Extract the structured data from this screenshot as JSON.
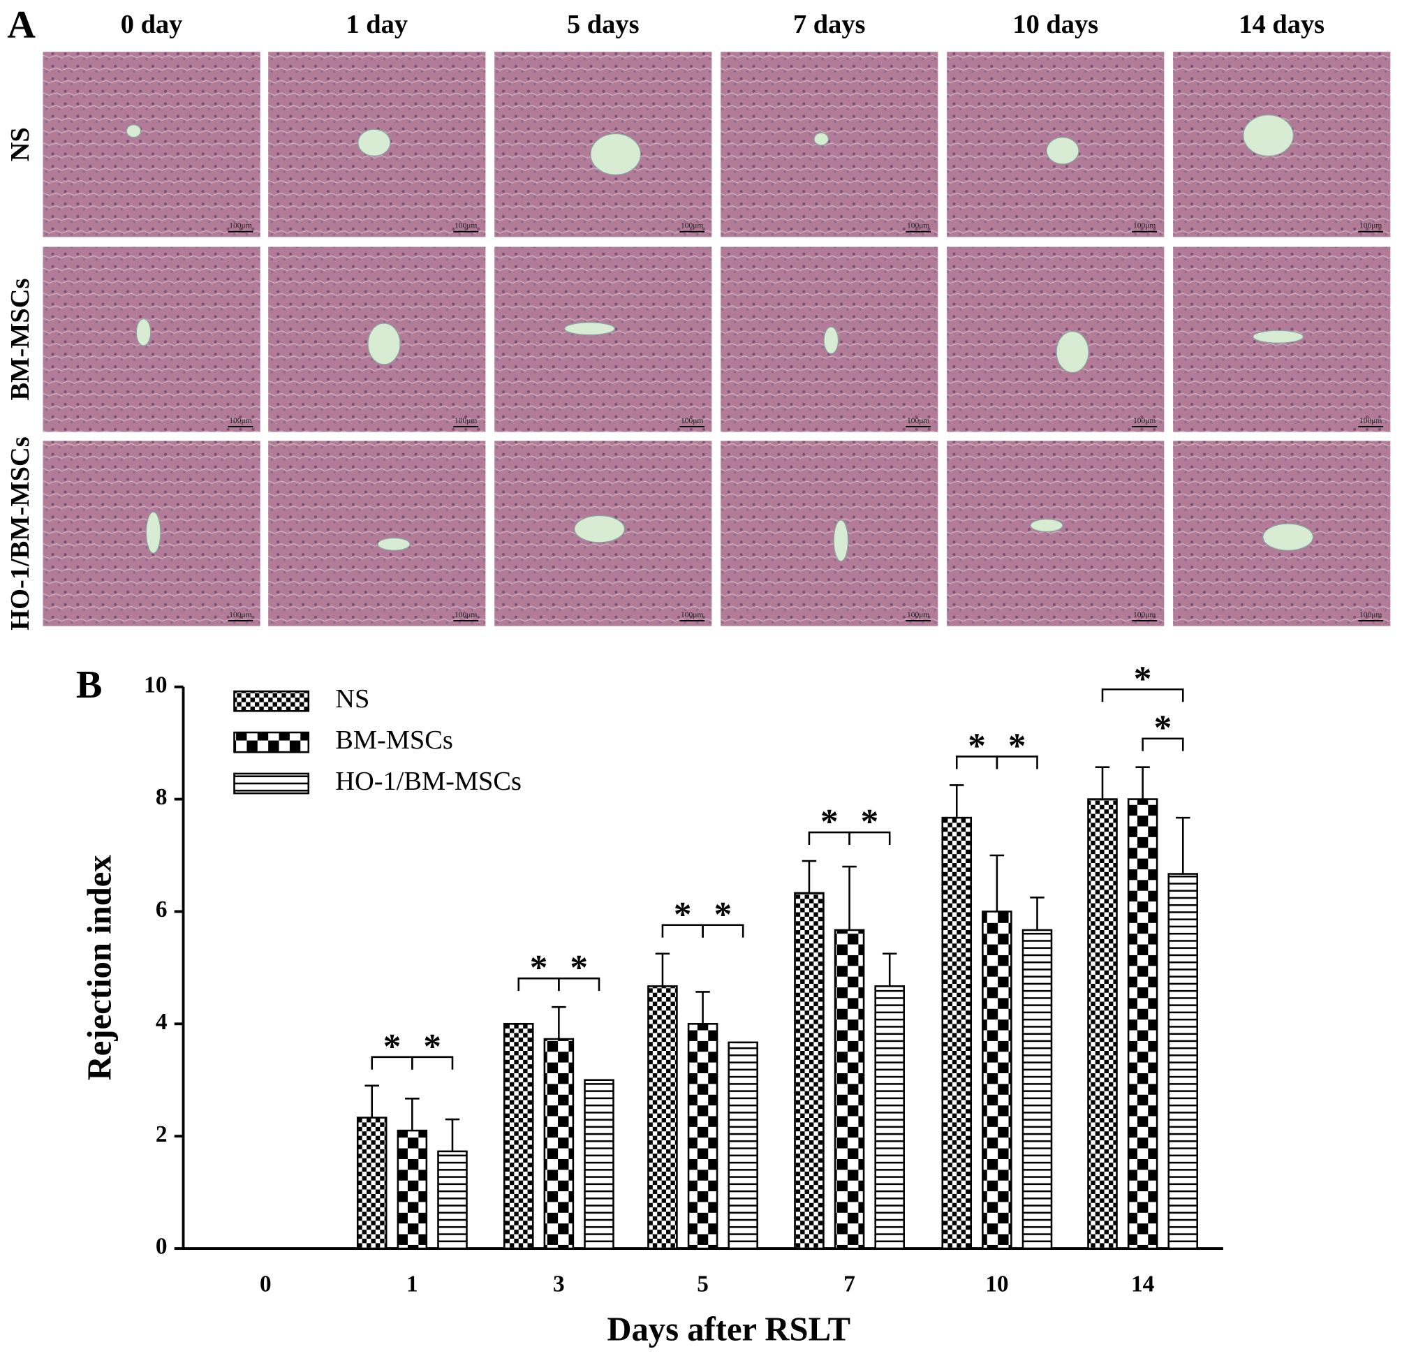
{
  "panel_a": {
    "label": "A",
    "columns": [
      "0 day",
      "1 day",
      "5 days",
      "7 days",
      "10 days",
      "14 days"
    ],
    "rows": [
      "NS",
      "BM-MSCs",
      "HO-1/BM-MSCs"
    ],
    "scale_bar": "100μm"
  },
  "chart_data": {
    "type": "bar",
    "panel_label": "B",
    "x_label": "Days after RSLT",
    "y_label": "Rejection index",
    "categories": [
      "0",
      "1",
      "3",
      "5",
      "7",
      "10",
      "14"
    ],
    "series": [
      {
        "name": "NS",
        "color": "#000000",
        "pattern": "fine-checker",
        "values": [
          0,
          2.33,
          4.0,
          4.67,
          6.33,
          7.67,
          8.0
        ],
        "errors": [
          0,
          0.57,
          0,
          0.58,
          0.57,
          0.58,
          0.57
        ]
      },
      {
        "name": "BM-MSCs",
        "color": "#000000",
        "pattern": "coarse-checker",
        "values": [
          0,
          2.1,
          3.73,
          4.0,
          5.67,
          6.0,
          8.0
        ],
        "errors": [
          0,
          0.57,
          0.57,
          0.57,
          1.13,
          1.0,
          0.57
        ]
      },
      {
        "name": "HO-1/BM-MSCs",
        "color": "#000000",
        "pattern": "horizontal-lines",
        "values": [
          0,
          1.73,
          3.0,
          3.67,
          4.67,
          5.67,
          6.67
        ],
        "errors": [
          0,
          0.57,
          0,
          0,
          0.58,
          0.58,
          1.0
        ]
      }
    ],
    "annotations": [
      {
        "category": "1",
        "from": "NS",
        "to": "BM-MSCs",
        "label": "*"
      },
      {
        "category": "1",
        "from": "BM-MSCs",
        "to": "HO-1/BM-MSCs",
        "label": "*"
      },
      {
        "category": "3",
        "from": "NS",
        "to": "BM-MSCs",
        "label": "*"
      },
      {
        "category": "3",
        "from": "BM-MSCs",
        "to": "HO-1/BM-MSCs",
        "label": "*"
      },
      {
        "category": "5",
        "from": "NS",
        "to": "BM-MSCs",
        "label": "*"
      },
      {
        "category": "5",
        "from": "BM-MSCs",
        "to": "HO-1/BM-MSCs",
        "label": "*"
      },
      {
        "category": "7",
        "from": "NS",
        "to": "BM-MSCs",
        "label": "*"
      },
      {
        "category": "7",
        "from": "BM-MSCs",
        "to": "HO-1/BM-MSCs",
        "label": "*"
      },
      {
        "category": "10",
        "from": "NS",
        "to": "BM-MSCs",
        "label": "*"
      },
      {
        "category": "10",
        "from": "BM-MSCs",
        "to": "HO-1/BM-MSCs",
        "label": "*"
      },
      {
        "category": "14",
        "from": "NS",
        "to": "HO-1/BM-MSCs",
        "label": "*"
      },
      {
        "category": "14",
        "from": "BM-MSCs",
        "to": "HO-1/BM-MSCs",
        "label": "*"
      }
    ],
    "ylim": [
      0,
      10
    ],
    "yticks": [
      0,
      2,
      4,
      6,
      8,
      10
    ],
    "legend": "top-left"
  }
}
